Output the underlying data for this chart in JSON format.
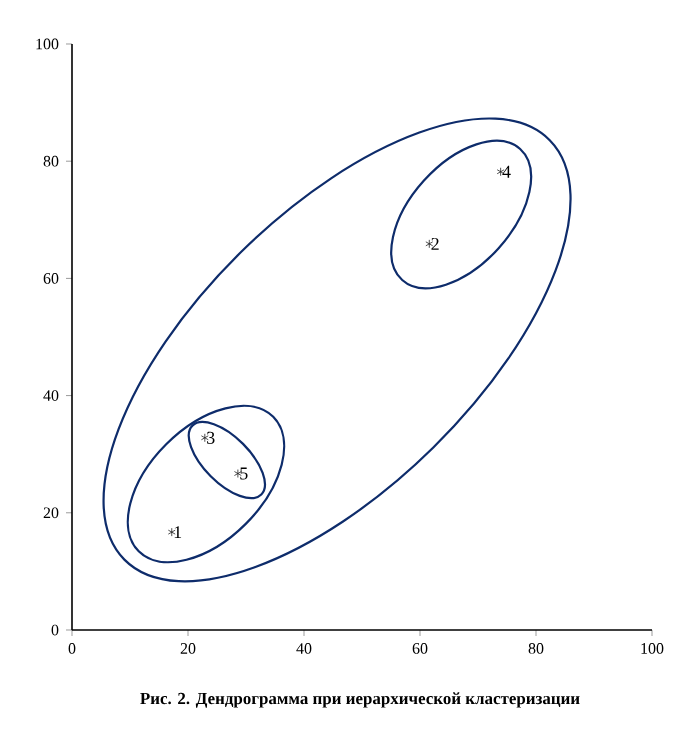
{
  "chart_data": {
    "type": "scatter",
    "x": [
      17.2,
      61.6,
      22.9,
      73.9,
      28.6
    ],
    "values": [
      16.7,
      65.9,
      32.8,
      78.2,
      26.7
    ],
    "color": "#222222",
    "marker": "cross",
    "xlim": [
      0,
      100
    ],
    "ylim": [
      0,
      100
    ],
    "xticks": [
      0,
      20,
      40,
      60,
      80,
      100
    ],
    "yticks": [
      0,
      20,
      40,
      60,
      80,
      100
    ],
    "annotations": [
      {
        "text": "1",
        "x": 17.2,
        "y": 16.7
      },
      {
        "text": "2",
        "x": 61.6,
        "y": 65.9
      },
      {
        "text": "3",
        "x": 22.9,
        "y": 32.8
      },
      {
        "text": "4",
        "x": 73.9,
        "y": 78.2
      },
      {
        "text": "5",
        "x": 28.6,
        "y": 26.7
      },
      "Рис. 2. Дендрограмма при иерархической кластеризации"
    ]
  }
}
